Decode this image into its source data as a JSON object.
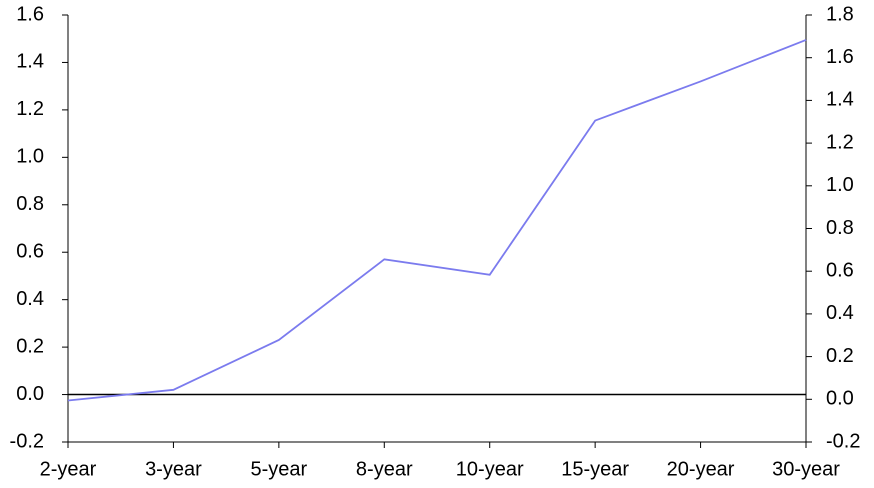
{
  "chart_data": {
    "type": "line",
    "categories": [
      "2-year",
      "3-year",
      "5-year",
      "8-year",
      "10-year",
      "15-year",
      "20-year",
      "30-year"
    ],
    "values": [
      -0.025,
      0.02,
      0.23,
      0.57,
      0.505,
      1.155,
      1.32,
      1.495
    ],
    "color": "#7b7bee",
    "ylim": [
      -0.2,
      1.6
    ],
    "yticks": [
      -0.2,
      {
        "value": 0,
        "label": "0.0"
      },
      0.2,
      0.4,
      0.6,
      0.8,
      {
        "value": 1,
        "label": "1.0"
      },
      1.2,
      1.4,
      1.6
    ],
    "y2lim": [
      -0.2,
      1.8
    ],
    "y2ticks": [
      -0.2,
      {
        "value": 0,
        "label": "0.0"
      },
      0.2,
      0.4,
      0.6,
      0.8,
      {
        "value": 1,
        "label": "1.0"
      },
      1.2,
      1.4,
      1.6,
      1.8
    ],
    "zero_line": true
  }
}
